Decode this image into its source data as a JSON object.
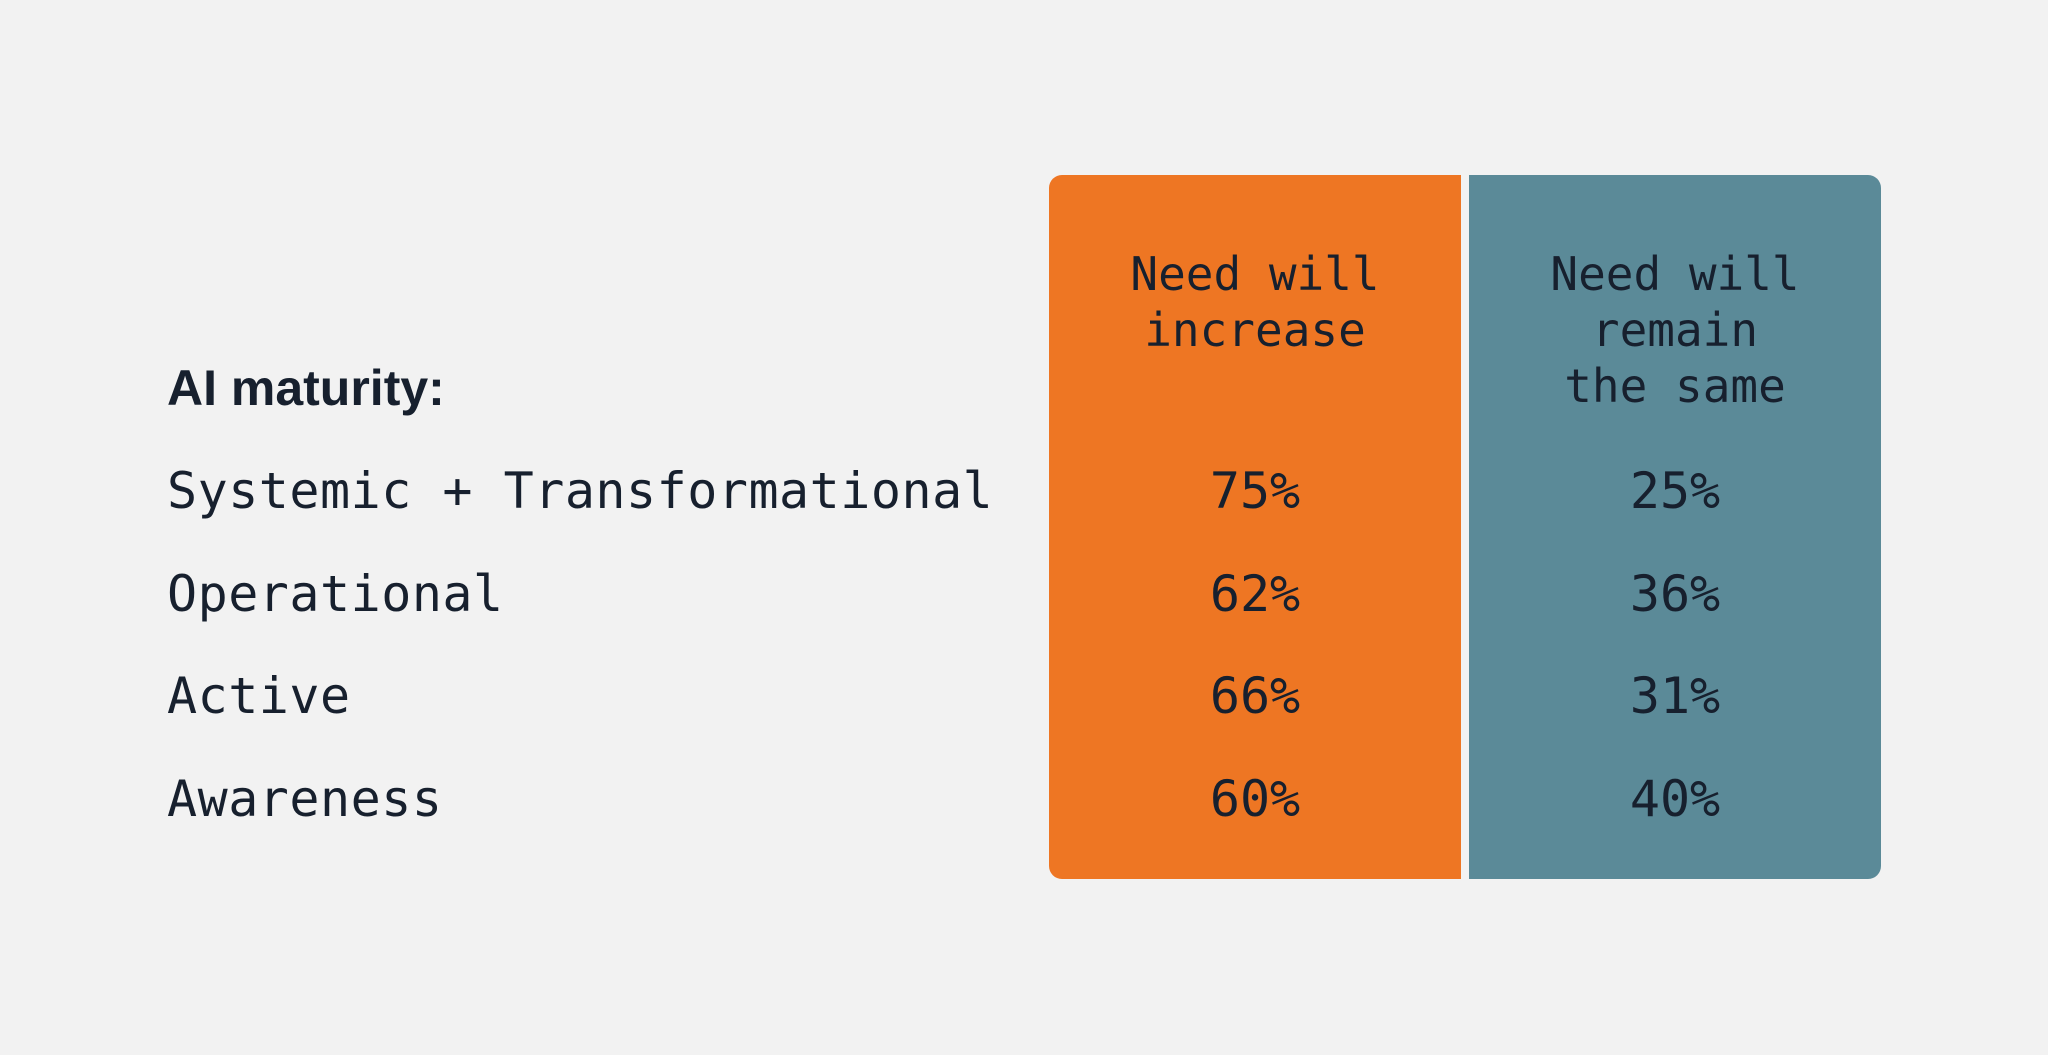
{
  "table": {
    "row_header": "AI maturity:",
    "columns": [
      "Need will increase",
      "Need will remain the same"
    ],
    "rows": [
      {
        "label": "Systemic + Transformational",
        "values": [
          "75%",
          "25%"
        ]
      },
      {
        "label": "Operational",
        "values": [
          "62%",
          "36%"
        ]
      },
      {
        "label": "Active",
        "values": [
          "66%",
          "31%"
        ]
      },
      {
        "label": "Awareness",
        "values": [
          "60%",
          "40%"
        ]
      }
    ]
  }
}
